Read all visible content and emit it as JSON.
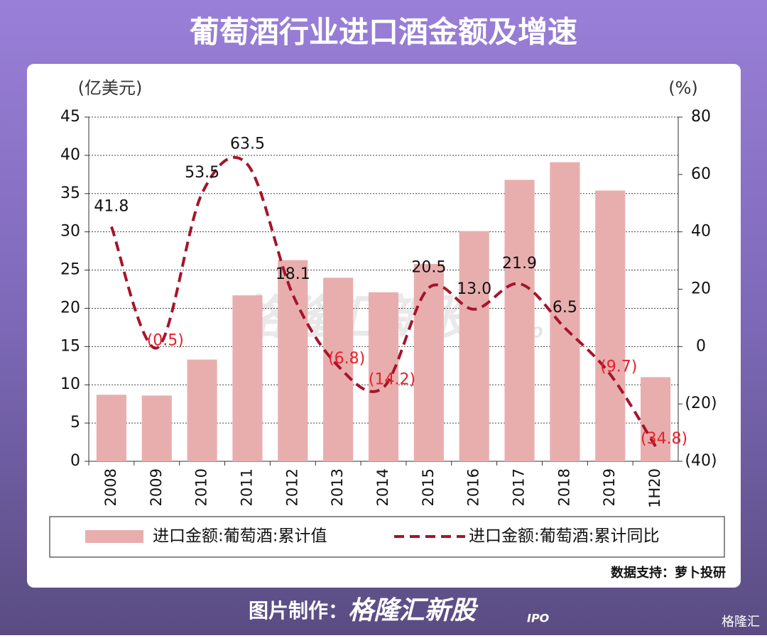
{
  "header": {
    "title": "葡萄酒行业进口酒金额及增速"
  },
  "chart_data": {
    "type": "bar_line",
    "y_unit": "(亿美元)",
    "y2_unit": "(%)",
    "categories": [
      "2008",
      "2009",
      "2010",
      "2011",
      "2012",
      "2013",
      "2014",
      "2015",
      "2016",
      "2017",
      "2018",
      "2019",
      "1H20"
    ],
    "series": [
      {
        "name": "进口金额:葡萄酒:累计值",
        "type": "bar",
        "color": "#e8aeae",
        "values": [
          8.7,
          8.6,
          13.3,
          21.7,
          26.3,
          24.0,
          22.1,
          25.8,
          30.1,
          36.8,
          39.1,
          35.4,
          11.0
        ]
      },
      {
        "name": "进口金额:葡萄酒:累计同比",
        "type": "line",
        "axis": "y2",
        "color": "#a5152a",
        "label_color": "#e8202a",
        "values": [
          41.8,
          -0.5,
          53.5,
          63.5,
          18.1,
          -6.8,
          -14.2,
          20.5,
          13.0,
          21.9,
          6.5,
          -9.7,
          -34.8
        ],
        "value_labels": [
          "41.8",
          "(0.5)",
          "53.5",
          "63.5",
          "18.1",
          "(6.8)",
          "(14.2)",
          "20.5",
          "13.0",
          "21.9",
          "6.5",
          "(9.7)",
          "(34.8)"
        ]
      }
    ],
    "ylim": [
      0,
      45
    ],
    "yticks": [
      0,
      5,
      10,
      15,
      20,
      25,
      30,
      35,
      40,
      45
    ],
    "y2lim": [
      -40,
      80
    ],
    "y2ticks": [
      {
        "value": -40,
        "label": "(40)"
      },
      {
        "value": -20,
        "label": "(20)"
      },
      0,
      20,
      40,
      60,
      80
    ],
    "grid": true,
    "watermark": "格隆汇新股",
    "watermark_sub": "IPO",
    "source": "数据支持：萝卜投研"
  },
  "footer": {
    "prefix": "图片制作：",
    "brand": "格隆汇新股",
    "brand_sub": "IPO",
    "logo": "格隆汇"
  }
}
